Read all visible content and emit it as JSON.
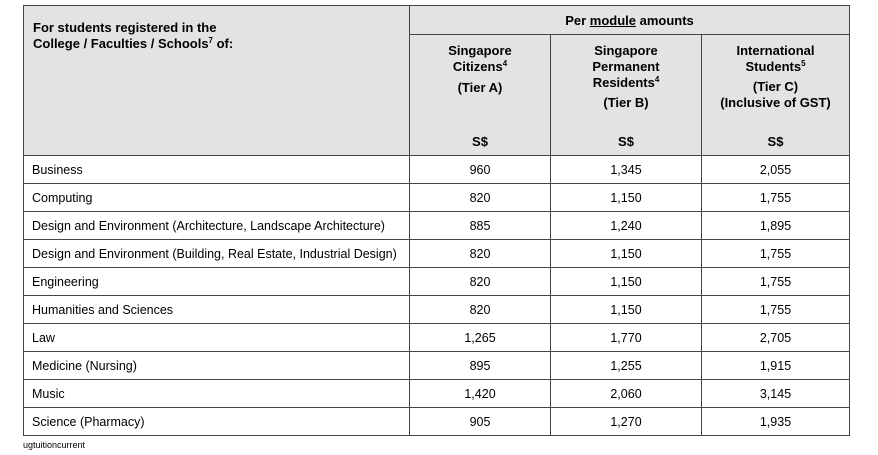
{
  "header": {
    "group_prefix": "Per ",
    "group_underlined": "module",
    "group_suffix": " amounts",
    "left_line1": "For students registered in the",
    "left_line2": "College / Faculties / Schools",
    "left_sup": "7",
    "left_tail": " of:",
    "columns": [
      {
        "lines": [
          "Singapore",
          "Citizens"
        ],
        "sup": "4",
        "extra": [
          "(Tier A)"
        ],
        "currency": "S$"
      },
      {
        "lines": [
          "Singapore",
          "Permanent",
          "Residents"
        ],
        "sup": "4",
        "extra": [
          "(Tier B)"
        ],
        "currency": "S$"
      },
      {
        "lines": [
          "International",
          "Students"
        ],
        "sup": "5",
        "extra": [
          "(Tier C)",
          "(Inclusive of GST)"
        ],
        "currency": "S$"
      }
    ]
  },
  "rows": [
    {
      "name": "Business",
      "a": "960",
      "b": "1,345",
      "c": "2,055"
    },
    {
      "name": "Computing",
      "a": "820",
      "b": "1,150",
      "c": "1,755"
    },
    {
      "name": "Design and Environment (Architecture, Landscape Architecture)",
      "a": "885",
      "b": "1,240",
      "c": "1,895"
    },
    {
      "name": "Design and Environment (Building, Real Estate, Industrial Design)",
      "a": "820",
      "b": "1,150",
      "c": "1,755"
    },
    {
      "name": "Engineering",
      "a": "820",
      "b": "1,150",
      "c": "1,755"
    },
    {
      "name": "Humanities and Sciences",
      "a": "820",
      "b": "1,150",
      "c": "1,755"
    },
    {
      "name": "Law",
      "a": "1,265",
      "b": "1,770",
      "c": "2,705"
    },
    {
      "name": "Medicine (Nursing)",
      "a": "895",
      "b": "1,255",
      "c": "1,915"
    },
    {
      "name": "Music",
      "a": "1,420",
      "b": "2,060",
      "c": "3,145"
    },
    {
      "name": "Science (Pharmacy)",
      "a": "905",
      "b": "1,270",
      "c": "1,935"
    }
  ],
  "footer": "ugtuitioncurrent"
}
